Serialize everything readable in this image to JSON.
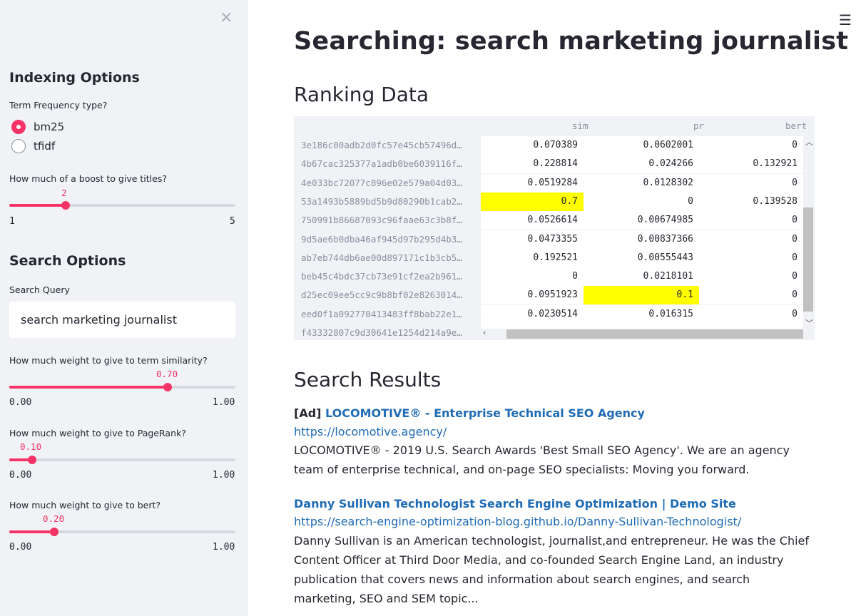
{
  "sidebar": {
    "close_icon": "×",
    "indexing_heading": "Indexing Options",
    "tf_label": "Term Frequency type?",
    "tf_options": [
      {
        "label": "bm25",
        "selected": true
      },
      {
        "label": "tfidf",
        "selected": false
      }
    ],
    "boost_label": "How much of a boost to give titles?",
    "boost": {
      "value": "2",
      "min": "1",
      "max": "5",
      "fraction": 0.25
    },
    "search_heading": "Search Options",
    "query_label": "Search Query",
    "query_value": "search marketing journalist",
    "sim_label": "How much weight to give to term similarity?",
    "sim": {
      "value": "0.70",
      "min": "0.00",
      "max": "1.00",
      "fraction": 0.7
    },
    "pr_label": "How much weight to give to PageRank?",
    "pr": {
      "value": "0.10",
      "min": "0.00",
      "max": "1.00",
      "fraction": 0.1
    },
    "bert_label": "How much weight to give to bert?",
    "bert": {
      "value": "0.20",
      "min": "0.00",
      "max": "1.00",
      "fraction": 0.2
    }
  },
  "main": {
    "menu_icon": "☰",
    "title": "Searching: search marketing journalist",
    "ranking_heading": "Ranking Data",
    "table": {
      "columns": [
        "sim",
        "pr",
        "bert"
      ],
      "rows": [
        {
          "idx": "3e186c00adb2d0fc57e45cb57496d…",
          "sim": "0.070389",
          "pr": "0.0602001",
          "bert": "0"
        },
        {
          "idx": "4b67cac325377a1adb0be6039116f…",
          "sim": "0.228814",
          "pr": "0.024266",
          "bert": "0.132921"
        },
        {
          "idx": "4e033bc72077c896e02e579a04d03…",
          "sim": "0.0519284",
          "pr": "0.0128302",
          "bert": "0"
        },
        {
          "idx": "53a1493b5889bd5b9d80290b1cab2…",
          "sim": "0.7",
          "pr": "0",
          "bert": "0.139528",
          "hl": "sim"
        },
        {
          "idx": "750991b86687093c96faae63c3b8f…",
          "sim": "0.0526614",
          "pr": "0.00674985",
          "bert": "0"
        },
        {
          "idx": "9d5ae6b0dba46af945d97b295d4b3…",
          "sim": "0.0473355",
          "pr": "0.00837366",
          "bert": "0"
        },
        {
          "idx": "ab7eb744db6ae00d897171c1b3cb5…",
          "sim": "0.192521",
          "pr": "0.00555443",
          "bert": "0"
        },
        {
          "idx": "beb45c4bdc37cb73e91cf2ea2b961…",
          "sim": "0",
          "pr": "0.0218101",
          "bert": "0"
        },
        {
          "idx": "d25ec09ee5cc9c9b8bf02e8263014…",
          "sim": "0.0951923",
          "pr": "0.1",
          "bert": "0",
          "hl": "pr"
        },
        {
          "idx": "eed0f1a092770413483ff8bab22e1…",
          "sim": "0.0230514",
          "pr": "0.016315",
          "bert": "0"
        },
        {
          "idx": "f43332807c9d30641e1254d214a9e…",
          "sim": "",
          "pr": "",
          "bert": ""
        }
      ]
    },
    "results_heading": "Search Results",
    "results": [
      {
        "ad": "[Ad]",
        "title": "LOCOMOTIVE® - Enterprise Technical SEO Agency",
        "url": "https://locomotive.agency/",
        "desc": "LOCOMOTIVE® - 2019 U.S. Search Awards 'Best Small SEO Agency'. We are an agency team of enterprise technical, and on-page SEO specialists: Moving you forward."
      },
      {
        "ad": "",
        "title": "Danny Sullivan Technologist Search Engine Optimization | Demo Site",
        "url": "https://search-engine-optimization-blog.github.io/Danny-Sullivan-Technologist/",
        "desc": "Danny Sullivan is an American technologist, journalist,and entrepreneur. He was the Chief Content Officer at Third Door Media, and co-founded Search Engine Land, an industry publication that covers news and information about search engines, and search marketing, SEO and SEM topic..."
      }
    ]
  }
}
